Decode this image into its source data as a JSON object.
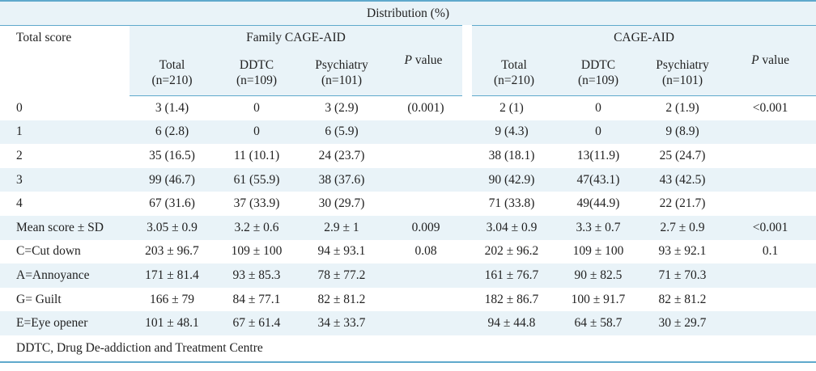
{
  "table": {
    "distribution_header": "Distribution (%)",
    "row_header": "Total score",
    "groups": [
      "Family CAGE-AID",
      "CAGE-AID"
    ],
    "subheaders": [
      {
        "label": "Total",
        "sub": "(n=210)"
      },
      {
        "label": "DDTC",
        "sub": "(n=109)"
      },
      {
        "label": "Psychiatry",
        "sub": "(n=101)"
      },
      {
        "label_italic": "P",
        "label": " value"
      },
      {
        "label": "Total",
        "sub": "(n=210)"
      },
      {
        "label": "DDTC",
        "sub": "(n=109)"
      },
      {
        "label": "Psychiatry",
        "sub": "(n=101)"
      },
      {
        "label_italic": "P",
        "label": " value"
      }
    ],
    "rows": [
      [
        "0",
        "3 (1.4)",
        "0",
        "3 (2.9)",
        "(0.001)",
        "2 (1)",
        "0",
        "2 (1.9)",
        "<0.001"
      ],
      [
        "1",
        "6 (2.8)",
        "0",
        "6 (5.9)",
        "",
        "9 (4.3)",
        "0",
        "9 (8.9)",
        ""
      ],
      [
        "2",
        "35 (16.5)",
        "11 (10.1)",
        "24 (23.7)",
        "",
        "38 (18.1)",
        "13(11.9)",
        "25 (24.7)",
        ""
      ],
      [
        "3",
        "99 (46.7)",
        "61 (55.9)",
        "38 (37.6)",
        "",
        "90 (42.9)",
        "47(43.1)",
        "43 (42.5)",
        ""
      ],
      [
        "4",
        "67 (31.6)",
        "37 (33.9)",
        "30 (29.7)",
        "",
        "71 (33.8)",
        "49(44.9)",
        "22 (21.7)",
        ""
      ],
      [
        "Mean score ± SD",
        "3.05 ± 0.9",
        "3.2 ± 0.6",
        "2.9 ± 1",
        "0.009",
        "3.04 ± 0.9",
        "3.3 ± 0.7",
        "2.7 ±  0.9",
        "<0.001"
      ],
      [
        "C=Cut down",
        "203 ± 96.7",
        "109 ± 100",
        "94 ± 93.1",
        "0.08",
        "202 ± 96.2",
        "109 ± 100",
        "93 ± 92.1",
        "0.1"
      ],
      [
        "A=Annoyance",
        "171 ± 81.4",
        "93 ± 85.3",
        "78 ± 77.2",
        "",
        "161 ± 76.7",
        "90 ± 82.5",
        "71 ± 70.3",
        ""
      ],
      [
        "G= Guilt",
        "166 ± 79",
        "84 ± 77.1",
        "82 ± 81.2",
        "",
        "182 ± 86.7",
        "100 ± 91.7",
        "82 ± 81.2",
        ""
      ],
      [
        "E=Eye opener",
        "101 ± 48.1",
        "67 ± 61.4",
        "34 ± 33.7",
        "",
        "94 ± 44.8",
        "64 ± 58.7",
        "30 ± 29.7",
        ""
      ]
    ],
    "footnote": "DDTC, Drug De-addiction and Treatment Centre"
  }
}
